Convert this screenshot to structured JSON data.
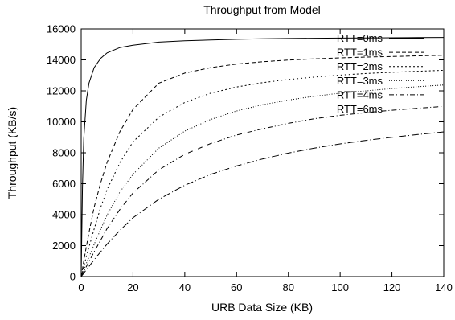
{
  "chart_data": {
    "type": "line",
    "title": "Throughput from Model",
    "xlabel": "URB Data Size (KB)",
    "ylabel": "Throughput (KB/s)",
    "xlim": [
      0,
      140
    ],
    "ylim": [
      0,
      16000
    ],
    "xticks": [
      0,
      20,
      40,
      60,
      80,
      100,
      120,
      140
    ],
    "yticks": [
      0,
      2000,
      4000,
      6000,
      8000,
      10000,
      12000,
      14000,
      16000
    ],
    "grid": false,
    "legend_position": "top-right",
    "x": [
      0.5,
      1,
      2,
      3,
      5,
      7.5,
      10,
      15,
      20,
      30,
      40,
      50,
      60,
      70,
      80,
      90,
      100,
      110,
      120,
      130,
      140
    ],
    "series": [
      {
        "name": "RTT=0ms",
        "dash": "solid",
        "values": [
          5800,
          8900,
          11400,
          12500,
          13500,
          14100,
          14450,
          14800,
          14950,
          15150,
          15230,
          15290,
          15330,
          15360,
          15380,
          15395,
          15410,
          15420,
          15430,
          15440,
          15450
        ]
      },
      {
        "name": "RTT=1ms",
        "dash": "dashed",
        "values": [
          500,
          990,
          1940,
          2840,
          4480,
          6050,
          7380,
          9380,
          10800,
          12500,
          13150,
          13500,
          13730,
          13880,
          13990,
          14070,
          14130,
          14180,
          14220,
          14260,
          14300
        ]
      },
      {
        "name": "RTT=2ms",
        "dash": "dotted",
        "values": [
          330,
          650,
          1290,
          1900,
          3070,
          4460,
          5620,
          7370,
          8700,
          10300,
          11250,
          11850,
          12250,
          12530,
          12730,
          12890,
          13020,
          13120,
          13200,
          13270,
          13330
        ]
      },
      {
        "name": "RTT=3ms",
        "dash": "dense-dotted",
        "values": [
          220,
          430,
          860,
          1270,
          2080,
          3050,
          3970,
          5480,
          6600,
          8300,
          9400,
          10150,
          10700,
          11100,
          11400,
          11650,
          11850,
          12000,
          12150,
          12270,
          12380
        ]
      },
      {
        "name": "RTT=4ms",
        "dash": "dash-dot",
        "values": [
          170,
          330,
          650,
          970,
          1600,
          2350,
          3100,
          4350,
          5400,
          6900,
          7900,
          8600,
          9150,
          9550,
          9900,
          10200,
          10420,
          10600,
          10750,
          10880,
          11000
        ]
      },
      {
        "name": "RTT=6ms",
        "dash": "long-dash-dot",
        "values": [
          110,
          220,
          440,
          660,
          1090,
          1600,
          2100,
          3000,
          3800,
          5000,
          5900,
          6600,
          7150,
          7600,
          7980,
          8300,
          8570,
          8800,
          9000,
          9180,
          9350
        ]
      }
    ]
  }
}
